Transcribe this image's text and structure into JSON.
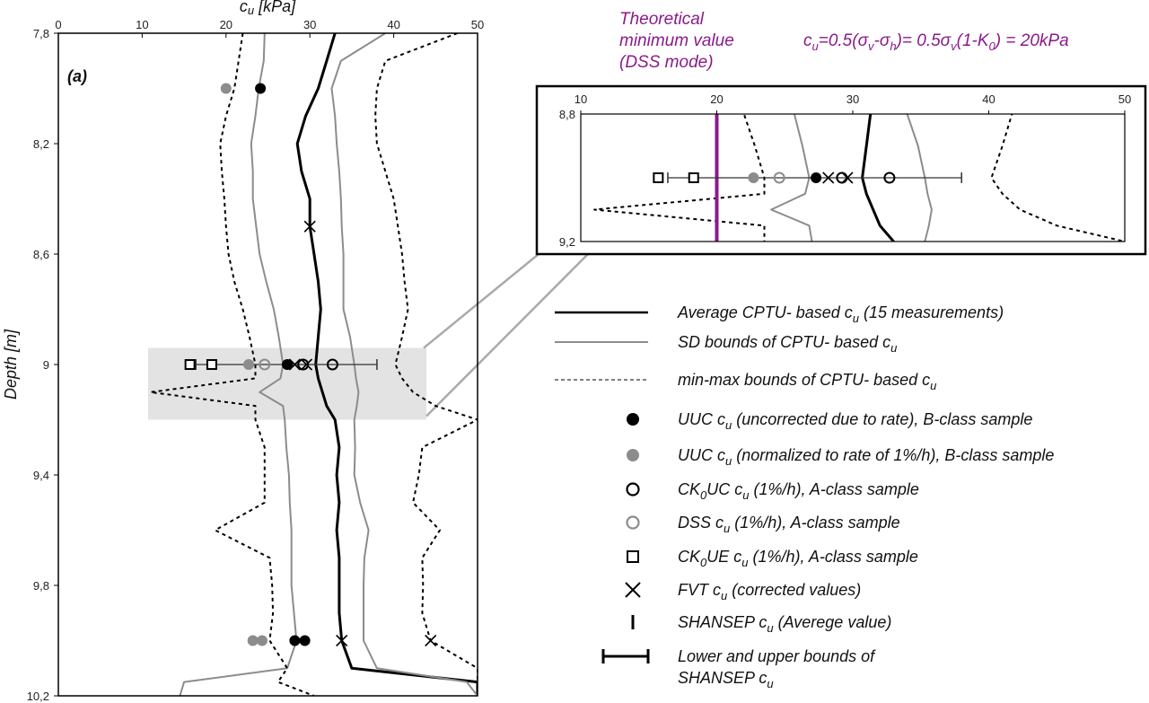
{
  "chart_data": [
    {
      "type": "line",
      "panel_label": "(a)",
      "xlabel": [
        [
          "c",
          0
        ],
        [
          "u",
          1
        ],
        [
          " [kPa]",
          0
        ]
      ],
      "ylabel": "Depth [m]",
      "xlim": [
        0,
        50
      ],
      "ylim": [
        7.8,
        10.2
      ],
      "y_inverted": true,
      "x_ticks": [
        "0",
        "10",
        "20",
        "30",
        "40",
        "50"
      ],
      "x_tick_values": [
        0,
        10,
        20,
        30,
        40,
        50
      ],
      "y_ticks": [
        "7,8",
        "8,2",
        "8,6",
        "9",
        "9,4",
        "9,8",
        "10,2"
      ],
      "y_tick_values": [
        7.8,
        8.2,
        8.6,
        9.0,
        9.4,
        9.8,
        10.2
      ],
      "axis_position": "top",
      "highlight": {
        "x": [
          10.7,
          43.9
        ],
        "y": [
          8.94,
          9.2
        ]
      },
      "depth": [
        7.8,
        7.9,
        8.0,
        8.1,
        8.2,
        8.3,
        8.4,
        8.5,
        8.6,
        8.7,
        8.8,
        8.9,
        9.0,
        9.05,
        9.1,
        9.15,
        9.2,
        9.3,
        9.4,
        9.5,
        9.6,
        9.7,
        9.8,
        9.9,
        10.0,
        10.1,
        10.15,
        10.2
      ],
      "series": [
        {
          "key": "avg",
          "style": "black-solid",
          "values": [
            33,
            32,
            31,
            29.5,
            28.5,
            29,
            30,
            30,
            30.5,
            31,
            31.3,
            31,
            30.7,
            31,
            31.5,
            32,
            33,
            33.5,
            33.2,
            33.5,
            33.2,
            33.5,
            33.5,
            33.5,
            33.8,
            35,
            50,
            50
          ]
        },
        {
          "key": "sd_low",
          "style": "gray-solid",
          "values": [
            24.6,
            24.5,
            23.9,
            23.5,
            23,
            23.2,
            23.2,
            23.6,
            24,
            24.8,
            25.7,
            26.3,
            26.8,
            26.5,
            24,
            26.8,
            27,
            27.2,
            27.5,
            27.6,
            27.8,
            27.8,
            27.8,
            28.1,
            28.4,
            27.3,
            15,
            14.5
          ]
        },
        {
          "key": "sd_high",
          "style": "gray-solid",
          "values": [
            39,
            33.7,
            32.6,
            33,
            33.2,
            33.5,
            33.7,
            33.8,
            34,
            34,
            34,
            34.8,
            35.3,
            35.5,
            35.8,
            35.6,
            35.3,
            35.4,
            35.3,
            36,
            37,
            36.5,
            36.4,
            36.4,
            36.4,
            38,
            48.7,
            50
          ]
        },
        {
          "key": "min",
          "style": "black-dashed",
          "values": [
            22,
            21.5,
            21,
            20,
            19.3,
            19.5,
            19.8,
            20,
            20.3,
            21,
            22,
            22.8,
            23.5,
            23.5,
            11,
            23.5,
            23.5,
            24.6,
            24.6,
            24.6,
            18.7,
            25.2,
            25.5,
            25.6,
            25.2,
            27.3,
            26.2,
            30.5
          ]
        },
        {
          "key": "max",
          "style": "black-dashed",
          "values": [
            47.6,
            39,
            38,
            37.8,
            38,
            39,
            40,
            40.5,
            41,
            41.3,
            41.7,
            41,
            40.2,
            41,
            42.3,
            45,
            50,
            43.4,
            43,
            42.3,
            45.5,
            43.4,
            43.5,
            43.4,
            44.4,
            50,
            50,
            50
          ]
        }
      ],
      "points": {
        "uuc_uncorrected": [
          [
            24.1,
            8.0
          ],
          [
            27.3,
            9.0
          ],
          [
            28.2,
            10.0
          ],
          [
            29.4,
            10.0
          ]
        ],
        "uuc_normalized": [
          [
            20.0,
            8.0
          ],
          [
            22.7,
            9.0
          ],
          [
            23.2,
            10.0
          ],
          [
            24.3,
            10.0
          ]
        ],
        "ck0uc": [
          [
            29.2,
            9.0
          ],
          [
            32.7,
            9.0
          ]
        ],
        "dss": [
          [
            24.6,
            9.0
          ]
        ],
        "ck0ue": [
          [
            15.7,
            9.0
          ],
          [
            18.3,
            9.0
          ]
        ],
        "fvt": [
          [
            30.0,
            8.5
          ],
          [
            28.2,
            9.0
          ],
          [
            29.6,
            9.0
          ],
          [
            33.8,
            10.0
          ],
          [
            44.4,
            10.0
          ]
        ],
        "shansep_avg": [
          [
            16.4,
            9.0
          ]
        ],
        "shansep_bounds": [
          [
            16.4,
            38.0,
            9.0
          ]
        ]
      }
    },
    {
      "type": "line",
      "xlim": [
        10,
        50
      ],
      "ylim": [
        8.8,
        9.2
      ],
      "y_inverted": true,
      "x_ticks": [
        "10",
        "20",
        "30",
        "40",
        "50"
      ],
      "x_tick_values": [
        10,
        20,
        30,
        40,
        50
      ],
      "y_ticks": [
        "8,8",
        "9,2"
      ],
      "y_tick_values": [
        8.8,
        9.2
      ],
      "theoretical_minimum": 20,
      "theoretical_color": "#8b1a8b"
    }
  ],
  "annotation": {
    "lines": [
      "Theoretical",
      "minimum value",
      "(DSS mode)"
    ],
    "formula": [
      [
        "c",
        0
      ],
      [
        "u",
        1
      ],
      [
        "=0.5(σ",
        0
      ],
      [
        "v",
        1
      ],
      [
        "-σ",
        0
      ],
      [
        "h",
        1
      ],
      [
        ")= 0.5σ",
        0
      ],
      [
        "v",
        1
      ],
      [
        "(1-K",
        0
      ],
      [
        "0",
        1
      ],
      [
        ") = 20kPa",
        0
      ]
    ]
  },
  "legend": [
    {
      "symbol": "black-line",
      "label": [
        [
          "Average CPTU- based c",
          0
        ],
        [
          "u",
          1
        ],
        [
          " (15 measurements)",
          0
        ]
      ]
    },
    {
      "symbol": "gray-line",
      "label": [
        [
          "SD bounds of CPTU- based c",
          0
        ],
        [
          "u",
          1
        ]
      ]
    },
    {
      "symbol": "dashed-line",
      "label": [
        [
          "min-max bounds of CPTU- based c",
          0
        ],
        [
          "u",
          1
        ]
      ]
    },
    {
      "symbol": "black-dot",
      "label": [
        [
          "UUC c",
          0
        ],
        [
          "u",
          1
        ],
        [
          " (uncorrected due to rate), B-class sample",
          0
        ]
      ]
    },
    {
      "symbol": "gray-dot",
      "label": [
        [
          "UUC c",
          0
        ],
        [
          "u",
          1
        ],
        [
          " (normalized to rate of 1%/h), B-class sample",
          0
        ]
      ]
    },
    {
      "symbol": "black-circle",
      "label": [
        [
          "CK",
          0
        ],
        [
          "0",
          1
        ],
        [
          "UC c",
          0
        ],
        [
          "u",
          1
        ],
        [
          " (1%/h), A-class sample",
          0
        ]
      ]
    },
    {
      "symbol": "gray-circle",
      "label": [
        [
          "DSS c",
          0
        ],
        [
          "u",
          1
        ],
        [
          " (1%/h), A-class sample",
          0
        ]
      ]
    },
    {
      "symbol": "square",
      "label": [
        [
          "CK",
          0
        ],
        [
          "0",
          1
        ],
        [
          "UE c",
          0
        ],
        [
          "u",
          1
        ],
        [
          " (1%/h), A-class sample",
          0
        ]
      ]
    },
    {
      "symbol": "cross",
      "label": [
        [
          "FVT c",
          0
        ],
        [
          "u",
          1
        ],
        [
          " (corrected values)",
          0
        ]
      ]
    },
    {
      "symbol": "tick",
      "label": [
        [
          "SHANSEP c",
          0
        ],
        [
          "u",
          1
        ],
        [
          " (Averege value)",
          0
        ]
      ]
    },
    {
      "symbol": "bar",
      "label": [
        [
          "Lower and upper bounds of",
          0
        ]
      ],
      "label2": [
        [
          "SHANSEP c",
          0
        ],
        [
          "u",
          1
        ]
      ]
    }
  ],
  "colors": {
    "black": "#000000",
    "gray": "#8c8c8c",
    "highlight": "#e3e3e3",
    "purple": "#8b1a8b"
  }
}
